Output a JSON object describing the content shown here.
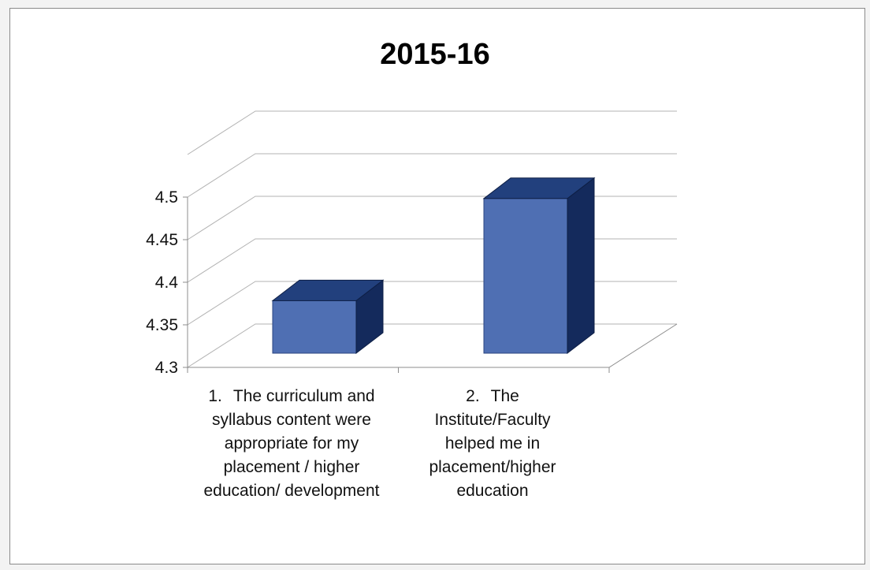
{
  "chart_data": {
    "type": "bar",
    "title": "2015-16",
    "categories": [
      {
        "num": "1.",
        "text": "The curriculum and syllabus content were appropriate for my placement / higher education/ development"
      },
      {
        "num": "2.",
        "text": "The Institute/Faculty helped me in placement/higher education"
      }
    ],
    "values": [
      4.37,
      4.49
    ],
    "ylim": [
      4.3,
      4.5
    ],
    "yticks": [
      "4.3",
      "4.35",
      "4.4",
      "4.45",
      "4.5"
    ],
    "ytick_values": [
      4.3,
      4.35,
      4.4,
      4.45,
      4.5
    ],
    "grid": true,
    "style": "3d-column",
    "colors": {
      "bar_front": "#4f6fb3",
      "bar_top": "#22407d",
      "bar_side": "#142a5c",
      "grid": "#b3b3b3",
      "axis": "#8c8c8c",
      "tick_text": "#111111"
    }
  }
}
